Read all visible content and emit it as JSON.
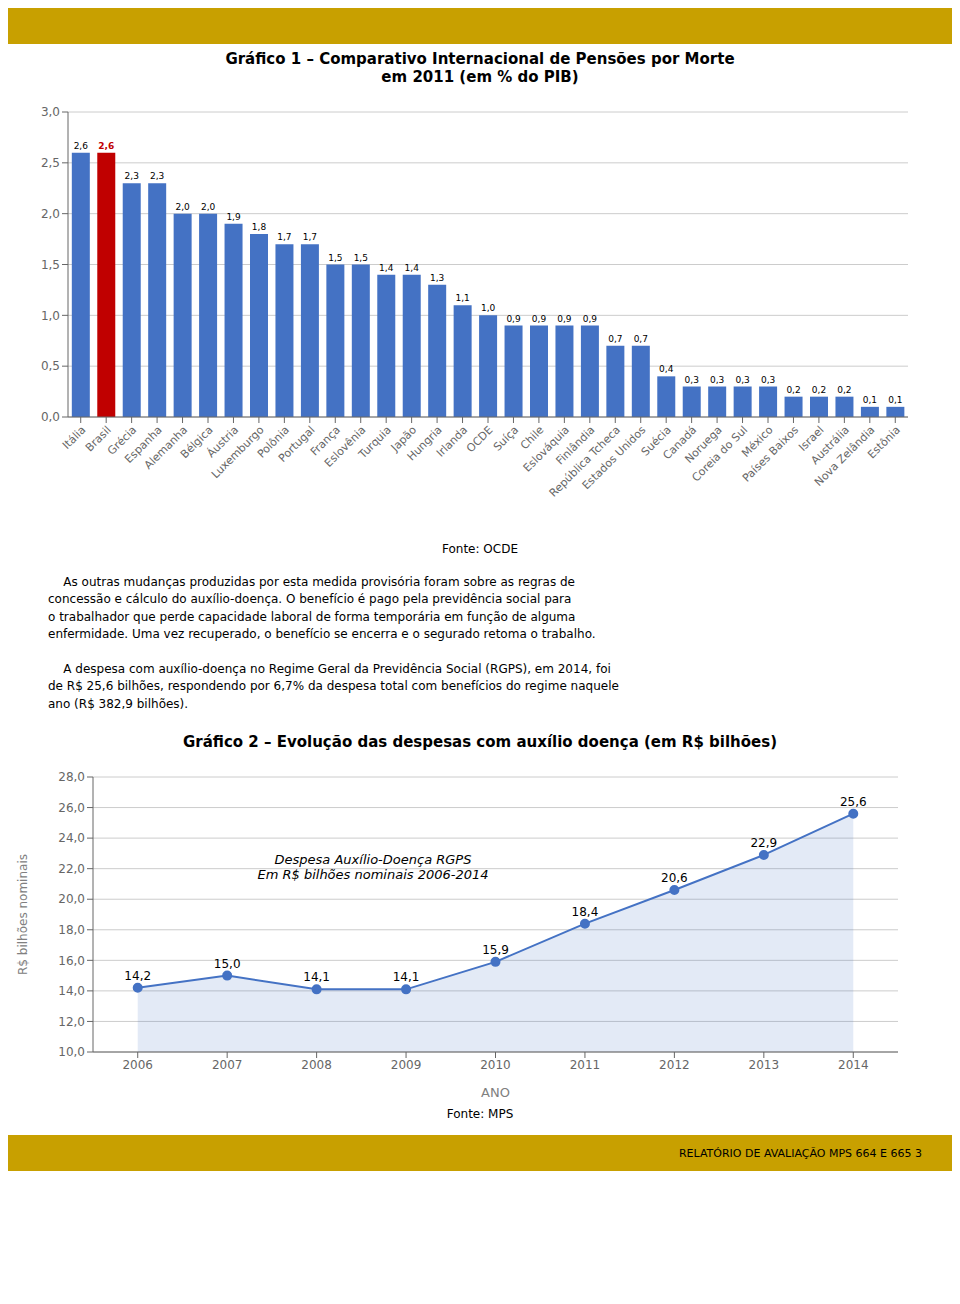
{
  "chart_data": [
    {
      "type": "bar",
      "title": "Gráfico 1 – Comparativo Internacional de Pensões por Morte\nem 2011 (em % do PIB)",
      "categories": [
        "Itália",
        "Brasil",
        "Grécia",
        "Espanha",
        "Alemanha",
        "Bélgica",
        "Áustria",
        "Luxemburgo",
        "Polônia",
        "Portugal",
        "França",
        "Eslovênia",
        "Turquia",
        "Japão",
        "Hungria",
        "Irlanda",
        "OCDE",
        "Suíça",
        "Chile",
        "Eslováquia",
        "Finlândia",
        "República Tcheca",
        "Estados Unidos",
        "Suécia",
        "Canadá",
        "Noruega",
        "Coreia do Sul",
        "México",
        "Países Baixos",
        "Israel",
        "Austrália",
        "Nova Zelândia",
        "Estônia"
      ],
      "values": [
        2.6,
        2.6,
        2.3,
        2.3,
        2.0,
        2.0,
        1.9,
        1.8,
        1.7,
        1.7,
        1.5,
        1.5,
        1.4,
        1.4,
        1.3,
        1.1,
        1.0,
        0.9,
        0.9,
        0.9,
        0.9,
        0.7,
        0.7,
        0.4,
        0.3,
        0.3,
        0.3,
        0.3,
        0.2,
        0.2,
        0.2,
        0.1,
        0.1
      ],
      "value_labels": [
        "2,6",
        "2,6",
        "2,3",
        "2,3",
        "2,0",
        "2,0",
        "1,9",
        "1,8",
        "1,7",
        "1,7",
        "1,5",
        "1,5",
        "1,4",
        "1,4",
        "1,3",
        "1,1",
        "1,0",
        "0,9",
        "0,9",
        "0,9",
        "0,9",
        "0,7",
        "0,7",
        "0,4",
        "0,3",
        "0,3",
        "0,3",
        "0,3",
        "0,2",
        "0,2",
        "0,2",
        "0,1",
        "0,1"
      ],
      "colors": [
        "#4472C4",
        "#C00000",
        "#4472C4",
        "#4472C4",
        "#4472C4",
        "#4472C4",
        "#4472C4",
        "#4472C4",
        "#4472C4",
        "#4472C4",
        "#4472C4",
        "#4472C4",
        "#4472C4",
        "#4472C4",
        "#4472C4",
        "#4472C4",
        "#4472C4",
        "#4472C4",
        "#4472C4",
        "#4472C4",
        "#4472C4",
        "#4472C4",
        "#4472C4",
        "#4472C4",
        "#4472C4",
        "#4472C4",
        "#4472C4",
        "#4472C4",
        "#4472C4",
        "#4472C4",
        "#4472C4",
        "#4472C4",
        "#4472C4"
      ],
      "ylim": [
        0.0,
        3.0
      ],
      "yticks": [
        {
          "value": 0.0,
          "label": "0,0"
        },
        {
          "value": 0.5,
          "label": "0,5"
        },
        {
          "value": 1.0,
          "label": "1,0"
        },
        {
          "value": 1.5,
          "label": "1,5"
        },
        {
          "value": 2.0,
          "label": "2,0"
        },
        {
          "value": 2.5,
          "label": "2,5"
        },
        {
          "value": 3.0,
          "label": "3,0"
        }
      ],
      "grid": true,
      "data_labels": true,
      "source": "Fonte: OCDE"
    },
    {
      "type": "line",
      "title": "Gráfico 2 – Evolução das despesas com auxílio doença (em R$ bilhões)",
      "x": [
        2006,
        2007,
        2008,
        2009,
        2010,
        2011,
        2012,
        2013,
        2014
      ],
      "values": [
        14.2,
        15.0,
        14.1,
        14.1,
        15.9,
        18.4,
        20.6,
        22.9,
        25.6
      ],
      "value_labels": [
        "14,2",
        "15,0",
        "14,1",
        "14,1",
        "15,9",
        "18,4",
        "20,6",
        "22,9",
        "25,6"
      ],
      "color": "#4472C4",
      "marker": "circle",
      "xlim": [
        2005.5,
        2014.5
      ],
      "xticks": [
        2006,
        2007,
        2008,
        2009,
        2010,
        2011,
        2012,
        2013,
        2014
      ],
      "ylim": [
        10.0,
        28.0
      ],
      "yticks": [
        {
          "value": 10.0,
          "label": "10,0"
        },
        {
          "value": 12.0,
          "label": "12,0"
        },
        {
          "value": 14.0,
          "label": "14,0"
        },
        {
          "value": 16.0,
          "label": "16,0"
        },
        {
          "value": 18.0,
          "label": "18,0"
        },
        {
          "value": 20.0,
          "label": "20,0"
        },
        {
          "value": 22.0,
          "label": "22,0"
        },
        {
          "value": 24.0,
          "label": "24,0"
        },
        {
          "value": 26.0,
          "label": "26,0"
        },
        {
          "value": 28.0,
          "label": "28,0"
        }
      ],
      "xlabel": "ANO",
      "ylabel": "R$ bilhões nominais",
      "annotations": [
        "Despesa Auxílio-Doença RGPS\nEm R$ bilhões nominais 2006-2014"
      ],
      "grid": true,
      "data_labels": true,
      "source": "Fonte: MPS"
    }
  ],
  "body_text": "    As outras mudanças produzidas por esta medida provisória foram sobre as regras de\nconcessão e cálculo do auxílio-doença. O benefício é pago pela previdência social para\no trabalhador que perde capacidade laboral de forma temporária em função de alguma\nenfermidade. Uma vez recuperado, o benefício se encerra e o segurado retoma o trabalho.\n\n    A despesa com auxílio-doença no Regime Geral da Previdência Social (RGPS), em 2014, foi\nde R$ 25,6 bilhões, respondendo por 6,7% da despesa total com benefícios do regime naquele\nano (R$ 382,9 bilhões).",
  "footer_text": "RELATÓRIO DE AVALIAÇÃO MPS 664 E 665    3",
  "header_color": "#C8A000"
}
